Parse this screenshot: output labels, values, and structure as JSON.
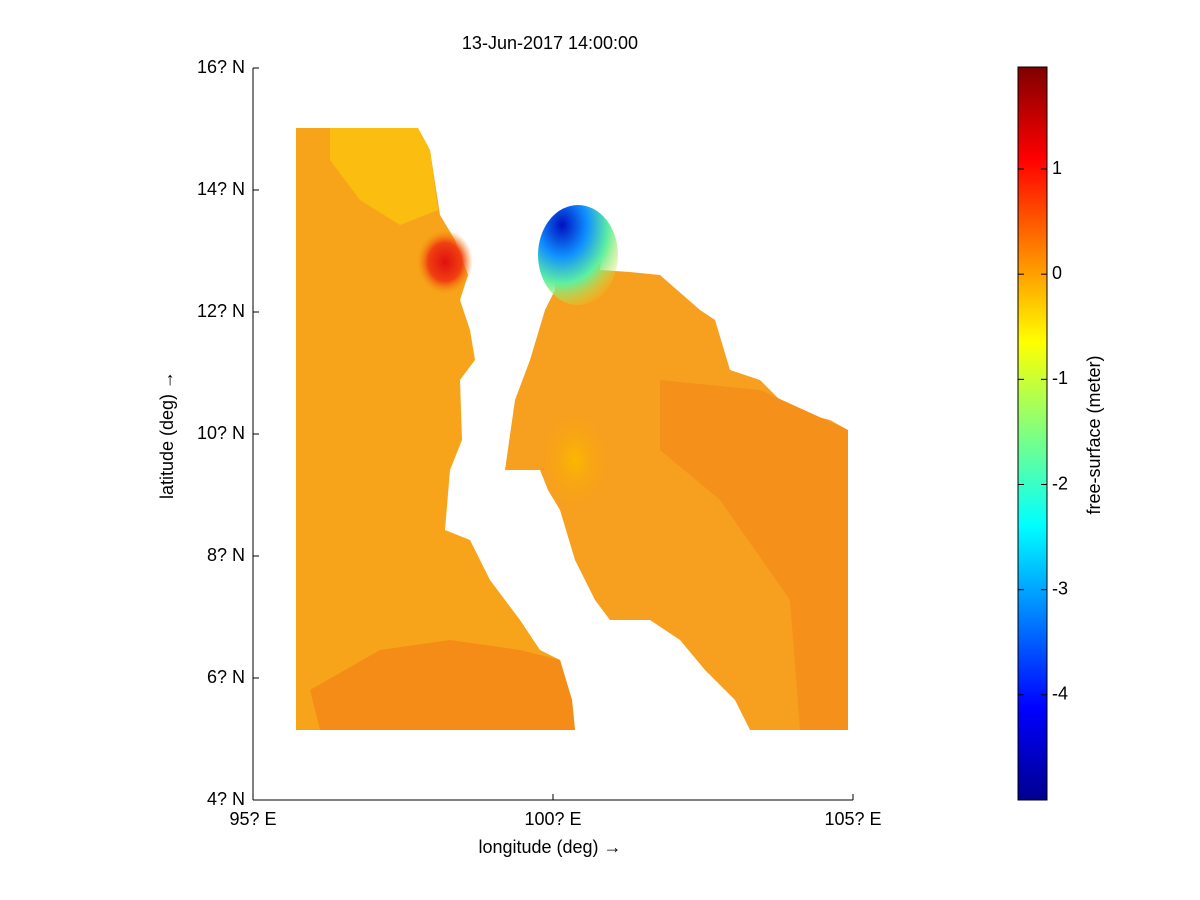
{
  "chart_data": {
    "type": "contour",
    "title": "13-Jun-2017 14:00:00",
    "x_label": "longitude (deg) →",
    "y_label": "latitude (deg) →",
    "xlim": [
      95,
      105
    ],
    "xticks": [
      {
        "value": 95,
        "label": "95? E"
      },
      {
        "value": 100,
        "label": "100? E"
      },
      {
        "value": 105,
        "label": "105? E"
      }
    ],
    "ylim": [
      4,
      16
    ],
    "yticks": [
      {
        "value": 4,
        "label": "4? N"
      },
      {
        "value": 6,
        "label": "6? N"
      },
      {
        "value": 8,
        "label": "8? N"
      },
      {
        "value": 10,
        "label": "10? N"
      },
      {
        "value": 12,
        "label": "12? N"
      },
      {
        "value": 14,
        "label": "14? N"
      },
      {
        "value": 16,
        "label": "16? N"
      }
    ],
    "colorbar": {
      "label": "free-surface (meter)",
      "lim": [
        -5,
        1.97
      ],
      "ticks": [
        -4,
        -3,
        -2,
        -1,
        0,
        1
      ]
    }
  }
}
